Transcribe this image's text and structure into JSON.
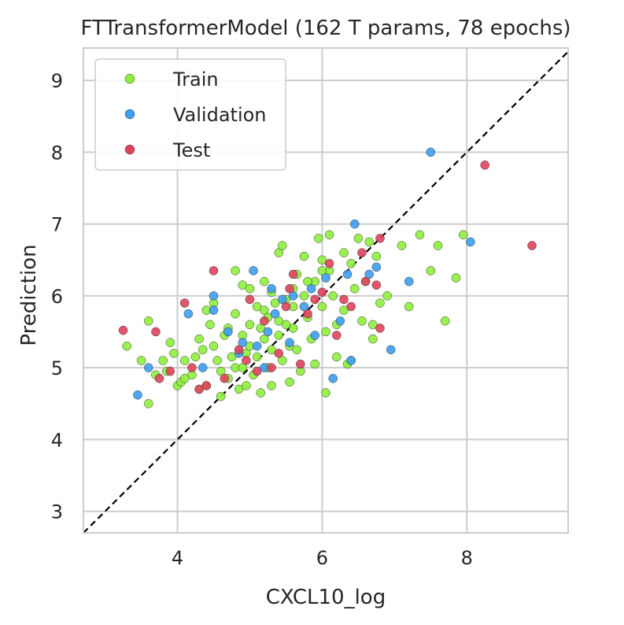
{
  "chart_data": {
    "type": "scatter",
    "title": "FTTransformerModel (162 T params, 78 epochs)",
    "xlabel": "CXCL10_log",
    "ylabel": "Prediction",
    "xlim": [
      2.7,
      9.4
    ],
    "ylim": [
      2.7,
      9.45
    ],
    "xticks": [
      4,
      6,
      8
    ],
    "yticks": [
      3,
      4,
      5,
      6,
      7,
      8,
      9
    ],
    "grid": true,
    "legend_position": "top-left",
    "reference_line": "y = x (dashed)",
    "series": [
      {
        "name": "Train",
        "color": "#8ef03c",
        "points": [
          [
            3.3,
            5.3
          ],
          [
            3.5,
            5.1
          ],
          [
            3.6,
            5.65
          ],
          [
            3.6,
            4.5
          ],
          [
            3.7,
            4.9
          ],
          [
            3.8,
            5.1
          ],
          [
            3.85,
            4.95
          ],
          [
            3.9,
            5.35
          ],
          [
            3.95,
            5.2
          ],
          [
            4.0,
            4.75
          ],
          [
            4.05,
            4.8
          ],
          [
            4.1,
            5.1
          ],
          [
            4.1,
            4.85
          ],
          [
            4.2,
            4.9
          ],
          [
            4.25,
            5.15
          ],
          [
            4.3,
            5.4
          ],
          [
            4.3,
            4.7
          ],
          [
            4.35,
            5.25
          ],
          [
            4.4,
            5.8
          ],
          [
            4.4,
            4.75
          ],
          [
            4.45,
            5.6
          ],
          [
            4.5,
            5.9
          ],
          [
            4.5,
            5.3
          ],
          [
            4.55,
            5.1
          ],
          [
            4.6,
            4.95
          ],
          [
            4.6,
            4.6
          ],
          [
            4.65,
            5.45
          ],
          [
            4.7,
            4.85
          ],
          [
            4.75,
            5.15
          ],
          [
            4.8,
            6.35
          ],
          [
            4.8,
            5.75
          ],
          [
            4.8,
            5.0
          ],
          [
            4.85,
            4.7
          ],
          [
            4.9,
            6.15
          ],
          [
            4.9,
            5.45
          ],
          [
            4.95,
            5.2
          ],
          [
            4.95,
            4.75
          ],
          [
            5.0,
            6.1
          ],
          [
            5.0,
            5.6
          ],
          [
            5.0,
            5.3
          ],
          [
            5.05,
            4.9
          ],
          [
            5.1,
            5.85
          ],
          [
            5.1,
            5.15
          ],
          [
            5.15,
            5.55
          ],
          [
            5.15,
            4.65
          ],
          [
            5.2,
            6.2
          ],
          [
            5.2,
            5.4
          ],
          [
            5.25,
            5.7
          ],
          [
            5.25,
            5.0
          ],
          [
            5.3,
            6.05
          ],
          [
            5.3,
            5.25
          ],
          [
            5.3,
            4.75
          ],
          [
            5.35,
            5.9
          ],
          [
            5.4,
            6.6
          ],
          [
            5.4,
            5.45
          ],
          [
            5.45,
            6.7
          ],
          [
            5.45,
            5.1
          ],
          [
            5.5,
            5.95
          ],
          [
            5.5,
            5.6
          ],
          [
            5.55,
            5.3
          ],
          [
            5.55,
            4.8
          ],
          [
            5.6,
            6.1
          ],
          [
            5.6,
            5.55
          ],
          [
            5.65,
            6.3
          ],
          [
            5.65,
            5.25
          ],
          [
            5.7,
            4.95
          ],
          [
            5.75,
            6.55
          ],
          [
            5.75,
            6.0
          ],
          [
            5.8,
            5.7
          ],
          [
            5.85,
            5.4
          ],
          [
            5.9,
            6.2
          ],
          [
            5.9,
            5.05
          ],
          [
            5.95,
            6.8
          ],
          [
            6.0,
            6.5
          ],
          [
            6.0,
            5.85
          ],
          [
            6.05,
            5.5
          ],
          [
            6.05,
            4.65
          ],
          [
            6.1,
            6.85
          ],
          [
            6.1,
            6.35
          ],
          [
            6.15,
            6.0
          ],
          [
            6.2,
            5.6
          ],
          [
            6.2,
            5.15
          ],
          [
            6.3,
            6.6
          ],
          [
            6.3,
            5.8
          ],
          [
            6.35,
            5.05
          ],
          [
            6.4,
            6.45
          ],
          [
            6.45,
            6.1
          ],
          [
            6.5,
            6.8
          ],
          [
            6.55,
            5.65
          ],
          [
            6.6,
            6.2
          ],
          [
            6.65,
            6.75
          ],
          [
            6.7,
            5.6
          ],
          [
            6.75,
            6.55
          ],
          [
            6.8,
            5.9
          ],
          [
            6.9,
            6.0
          ],
          [
            7.1,
            6.7
          ],
          [
            7.2,
            5.85
          ],
          [
            7.35,
            6.85
          ],
          [
            7.5,
            6.35
          ],
          [
            7.6,
            6.7
          ],
          [
            7.7,
            5.65
          ],
          [
            7.85,
            6.25
          ],
          [
            7.95,
            6.85
          ],
          [
            6.7,
            5.4
          ],
          [
            6.4,
            5.1
          ],
          [
            5.2,
            5.8
          ],
          [
            4.7,
            5.55
          ],
          [
            5.8,
            6.2
          ],
          [
            6.0,
            6.35
          ],
          [
            5.4,
            5.65
          ],
          [
            4.9,
            5.0
          ],
          [
            5.6,
            5.85
          ]
        ]
      },
      {
        "name": "Validation",
        "color": "#3c9ef0",
        "points": [
          [
            3.45,
            4.62
          ],
          [
            3.6,
            5.0
          ],
          [
            4.15,
            5.75
          ],
          [
            4.35,
            5.0
          ],
          [
            4.5,
            5.8
          ],
          [
            4.5,
            6.0
          ],
          [
            4.7,
            5.5
          ],
          [
            4.85,
            5.2
          ],
          [
            4.9,
            5.35
          ],
          [
            5.05,
            6.35
          ],
          [
            5.1,
            5.3
          ],
          [
            5.2,
            5.0
          ],
          [
            5.25,
            5.5
          ],
          [
            5.3,
            6.1
          ],
          [
            5.35,
            5.75
          ],
          [
            5.45,
            5.95
          ],
          [
            5.55,
            5.35
          ],
          [
            5.6,
            6.0
          ],
          [
            5.75,
            5.85
          ],
          [
            5.85,
            6.1
          ],
          [
            5.9,
            5.45
          ],
          [
            6.05,
            6.25
          ],
          [
            6.15,
            4.85
          ],
          [
            6.25,
            5.65
          ],
          [
            6.35,
            6.3
          ],
          [
            6.4,
            5.1
          ],
          [
            6.45,
            7.0
          ],
          [
            6.65,
            6.3
          ],
          [
            6.75,
            6.4
          ],
          [
            6.95,
            5.25
          ],
          [
            7.2,
            6.2
          ],
          [
            7.5,
            8.0
          ],
          [
            8.05,
            6.75
          ]
        ]
      },
      {
        "name": "Test",
        "color": "#e0425c",
        "points": [
          [
            3.25,
            5.52
          ],
          [
            3.7,
            5.5
          ],
          [
            3.75,
            4.85
          ],
          [
            3.9,
            4.95
          ],
          [
            4.1,
            5.9
          ],
          [
            4.2,
            5.0
          ],
          [
            4.3,
            4.7
          ],
          [
            4.4,
            4.75
          ],
          [
            4.5,
            6.35
          ],
          [
            4.65,
            4.85
          ],
          [
            4.85,
            5.25
          ],
          [
            4.95,
            5.1
          ],
          [
            5.0,
            5.95
          ],
          [
            5.1,
            4.95
          ],
          [
            5.2,
            5.65
          ],
          [
            5.3,
            5.0
          ],
          [
            5.4,
            5.2
          ],
          [
            5.5,
            5.85
          ],
          [
            5.55,
            6.1
          ],
          [
            5.6,
            6.3
          ],
          [
            5.7,
            5.05
          ],
          [
            5.8,
            5.75
          ],
          [
            5.9,
            5.95
          ],
          [
            6.0,
            6.05
          ],
          [
            6.1,
            6.45
          ],
          [
            6.2,
            5.45
          ],
          [
            6.3,
            5.95
          ],
          [
            6.4,
            5.85
          ],
          [
            6.55,
            6.6
          ],
          [
            6.6,
            6.2
          ],
          [
            6.75,
            6.15
          ],
          [
            6.8,
            5.55
          ],
          [
            6.8,
            6.8
          ],
          [
            8.25,
            7.82
          ],
          [
            8.9,
            6.7
          ]
        ]
      }
    ]
  }
}
